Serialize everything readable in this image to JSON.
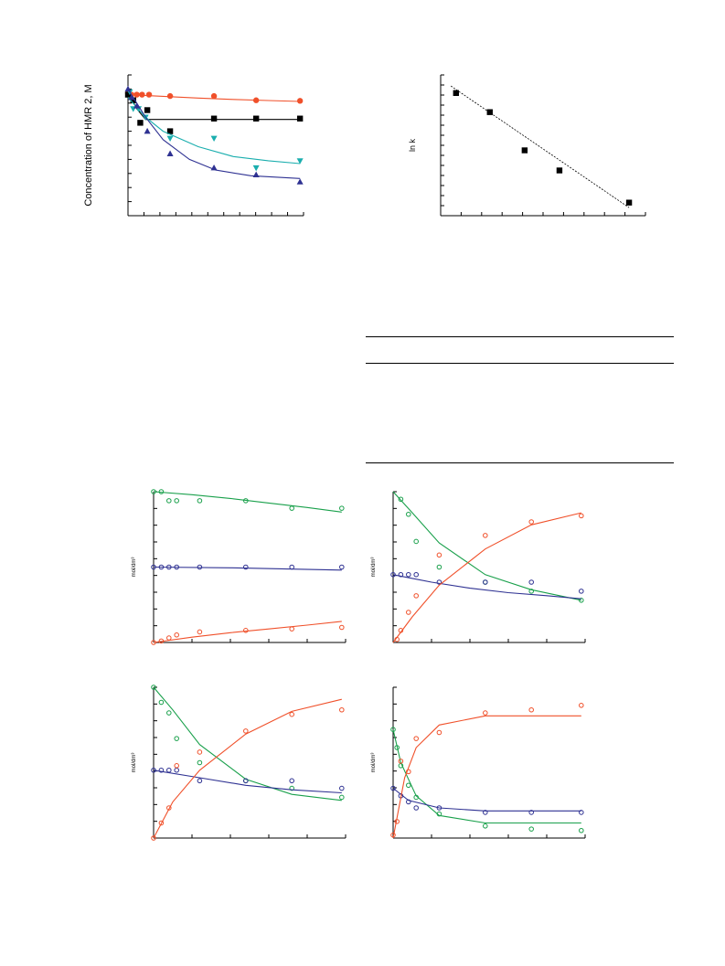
{
  "chart_data": [
    {
      "id": "hmr-concentration",
      "type": "scatter",
      "ylabel": "Concentration of HMR 2, M",
      "xlabel": "",
      "xlim": [
        0,
        100
      ],
      "ylim": [
        0,
        5
      ],
      "grid": false,
      "series": [
        {
          "color": "#f0502a",
          "marker": "circle",
          "points": [
            [
              0,
              4.35
            ],
            [
              2,
              4.3
            ],
            [
              5,
              4.3
            ],
            [
              8,
              4.3
            ],
            [
              12,
              4.3
            ],
            [
              24,
              4.25
            ],
            [
              49,
              4.25
            ],
            [
              73,
              4.1
            ],
            [
              98,
              4.08
            ]
          ],
          "fit": [
            [
              0,
              4.3
            ],
            [
              20,
              4.24
            ],
            [
              40,
              4.18
            ],
            [
              60,
              4.13
            ],
            [
              80,
              4.09
            ],
            [
              98,
              4.06
            ]
          ]
        },
        {
          "color": "#000000",
          "marker": "square",
          "points": [
            [
              0,
              4.3
            ],
            [
              3,
              4.1
            ],
            [
              7,
              3.3
            ],
            [
              11,
              3.75
            ],
            [
              24,
              3.0
            ],
            [
              49,
              3.45
            ],
            [
              73,
              3.45
            ],
            [
              98,
              3.45
            ]
          ],
          "fit": [
            [
              0,
              4.4
            ],
            [
              5,
              3.8
            ],
            [
              10,
              3.42
            ],
            [
              20,
              3.42
            ],
            [
              40,
              3.42
            ],
            [
              98,
              3.42
            ]
          ]
        },
        {
          "color": "#1aaeae",
          "marker": "triangle-down",
          "points": [
            [
              1,
              4.4
            ],
            [
              3,
              3.8
            ],
            [
              6,
              3.8
            ],
            [
              10,
              3.5
            ],
            [
              24,
              2.75
            ],
            [
              49,
              2.75
            ],
            [
              73,
              1.7
            ],
            [
              98,
              1.95
            ]
          ],
          "fit": [
            [
              0,
              4.2
            ],
            [
              10,
              3.5
            ],
            [
              20,
              3.0
            ],
            [
              40,
              2.45
            ],
            [
              60,
              2.1
            ],
            [
              80,
              1.95
            ],
            [
              98,
              1.85
            ]
          ]
        },
        {
          "color": "#2e3192",
          "marker": "triangle-up",
          "points": [
            [
              0,
              4.5
            ],
            [
              2,
              4.2
            ],
            [
              5,
              3.9
            ],
            [
              11,
              3.0
            ],
            [
              24,
              2.2
            ],
            [
              49,
              1.7
            ],
            [
              73,
              1.45
            ],
            [
              98,
              1.2
            ]
          ],
          "fit": [
            [
              0,
              4.5
            ],
            [
              10,
              3.5
            ],
            [
              20,
              2.7
            ],
            [
              35,
              2.0
            ],
            [
              50,
              1.62
            ],
            [
              70,
              1.42
            ],
            [
              98,
              1.32
            ]
          ]
        }
      ]
    },
    {
      "id": "ln-k",
      "type": "scatter",
      "ylabel": "ln k",
      "xlabel": "",
      "xlim": [
        0,
        10
      ],
      "ylim": [
        0,
        7
      ],
      "grid": false,
      "series": [
        {
          "color": "#000000",
          "marker": "square",
          "points": [
            [
              0.75,
              6.1
            ],
            [
              2.4,
              5.15
            ],
            [
              4.1,
              3.25
            ],
            [
              5.8,
              2.25
            ],
            [
              9.2,
              0.65
            ]
          ],
          "fit": [
            [
              0.5,
              6.45
            ],
            [
              9.2,
              0.4
            ]
          ]
        }
      ]
    },
    {
      "id": "conc-a",
      "type": "scatter",
      "ylabel": "mol/dm³",
      "xlabel": "",
      "xlim": [
        0,
        5
      ],
      "ylim": [
        0,
        1
      ],
      "grid": false,
      "series": [
        {
          "color": "#19a04b",
          "marker": "open-circle",
          "points": [
            [
              0,
              1
            ],
            [
              0.2,
              1
            ],
            [
              0.4,
              0.94
            ],
            [
              0.6,
              0.94
            ],
            [
              1.2,
              0.94
            ],
            [
              2.4,
              0.94
            ],
            [
              3.6,
              0.89
            ],
            [
              4.9,
              0.89
            ]
          ],
          "fit": [
            [
              0,
              1
            ],
            [
              1,
              0.98
            ],
            [
              2,
              0.955
            ],
            [
              3,
              0.925
            ],
            [
              4,
              0.895
            ],
            [
              4.9,
              0.865
            ]
          ]
        },
        {
          "color": "#2e3192",
          "marker": "open-circle",
          "points": [
            [
              0,
              0.5
            ],
            [
              0.2,
              0.5
            ],
            [
              0.4,
              0.5
            ],
            [
              0.6,
              0.5
            ],
            [
              1.2,
              0.5
            ],
            [
              2.4,
              0.5
            ],
            [
              3.6,
              0.5
            ],
            [
              4.9,
              0.5
            ]
          ],
          "fit": [
            [
              0,
              0.5
            ],
            [
              2,
              0.495
            ],
            [
              4.9,
              0.48
            ]
          ]
        },
        {
          "color": "#f0502a",
          "marker": "open-circle",
          "points": [
            [
              0,
              0
            ],
            [
              0.2,
              0.01
            ],
            [
              0.4,
              0.03
            ],
            [
              0.6,
              0.05
            ],
            [
              1.2,
              0.07
            ],
            [
              2.4,
              0.08
            ],
            [
              3.6,
              0.09
            ],
            [
              4.9,
              0.1
            ]
          ],
          "fit": [
            [
              0,
              0
            ],
            [
              1,
              0.035
            ],
            [
              2,
              0.065
            ],
            [
              3,
              0.09
            ],
            [
              4,
              0.115
            ],
            [
              4.9,
              0.14
            ]
          ]
        }
      ]
    },
    {
      "id": "conc-b",
      "type": "scatter",
      "ylabel": "mol/dm³",
      "xlabel": "",
      "xlim": [
        0,
        5
      ],
      "ylim": [
        0,
        1
      ],
      "grid": false,
      "series": [
        {
          "color": "#19a04b",
          "marker": "open-circle",
          "points": [
            [
              0.2,
              0.95
            ],
            [
              0.4,
              0.85
            ],
            [
              0.6,
              0.67
            ],
            [
              1.2,
              0.5
            ],
            [
              2.4,
              0.4
            ],
            [
              3.6,
              0.34
            ],
            [
              4.9,
              0.28
            ]
          ],
          "fit": [
            [
              0,
              1
            ],
            [
              0.5,
              0.86
            ],
            [
              1.2,
              0.66
            ],
            [
              2.4,
              0.45
            ],
            [
              3.6,
              0.35
            ],
            [
              4.9,
              0.28
            ]
          ]
        },
        {
          "color": "#2e3192",
          "marker": "open-circle",
          "points": [
            [
              0,
              0.45
            ],
            [
              0.2,
              0.45
            ],
            [
              0.4,
              0.45
            ],
            [
              0.6,
              0.45
            ],
            [
              1.2,
              0.4
            ],
            [
              2.4,
              0.4
            ],
            [
              3.6,
              0.4
            ],
            [
              4.9,
              0.34
            ]
          ],
          "fit": [
            [
              0,
              0.45
            ],
            [
              1,
              0.4
            ],
            [
              2,
              0.36
            ],
            [
              3,
              0.33
            ],
            [
              4,
              0.31
            ],
            [
              4.9,
              0.29
            ]
          ]
        },
        {
          "color": "#f0502a",
          "marker": "open-circle",
          "points": [
            [
              0.1,
              0.02
            ],
            [
              0.2,
              0.08
            ],
            [
              0.4,
              0.2
            ],
            [
              0.6,
              0.31
            ],
            [
              1.2,
              0.58
            ],
            [
              2.4,
              0.71
            ],
            [
              3.6,
              0.8
            ],
            [
              4.9,
              0.84
            ]
          ],
          "fit": [
            [
              0,
              0
            ],
            [
              0.5,
              0.17
            ],
            [
              1.2,
              0.38
            ],
            [
              2.4,
              0.62
            ],
            [
              3.6,
              0.78
            ],
            [
              4.9,
              0.86
            ]
          ]
        }
      ]
    },
    {
      "id": "conc-c",
      "type": "scatter",
      "ylabel": "mol/dm³",
      "xlabel": "",
      "xlim": [
        0,
        5
      ],
      "ylim": [
        0,
        1
      ],
      "grid": false,
      "series": [
        {
          "color": "#19a04b",
          "marker": "open-circle",
          "points": [
            [
              0,
              1
            ],
            [
              0.2,
              0.9
            ],
            [
              0.4,
              0.83
            ],
            [
              0.6,
              0.66
            ],
            [
              1.2,
              0.5
            ],
            [
              2.4,
              0.38
            ],
            [
              3.6,
              0.33
            ],
            [
              4.9,
              0.27
            ]
          ],
          "fit": [
            [
              0,
              1
            ],
            [
              0.5,
              0.85
            ],
            [
              1.2,
              0.62
            ],
            [
              2.4,
              0.39
            ],
            [
              3.6,
              0.29
            ],
            [
              4.9,
              0.25
            ]
          ]
        },
        {
          "color": "#2e3192",
          "marker": "open-circle",
          "points": [
            [
              0,
              0.45
            ],
            [
              0.2,
              0.45
            ],
            [
              0.4,
              0.45
            ],
            [
              0.6,
              0.45
            ],
            [
              1.2,
              0.38
            ],
            [
              2.4,
              0.38
            ],
            [
              3.6,
              0.38
            ],
            [
              4.9,
              0.33
            ]
          ],
          "fit": [
            [
              0,
              0.45
            ],
            [
              1.2,
              0.4
            ],
            [
              2.4,
              0.35
            ],
            [
              3.6,
              0.32
            ],
            [
              4.9,
              0.3
            ]
          ]
        },
        {
          "color": "#f0502a",
          "marker": "open-circle",
          "points": [
            [
              0,
              0
            ],
            [
              0.2,
              0.1
            ],
            [
              0.4,
              0.2
            ],
            [
              0.6,
              0.48
            ],
            [
              1.2,
              0.57
            ],
            [
              2.4,
              0.71
            ],
            [
              3.6,
              0.82
            ],
            [
              4.9,
              0.85
            ]
          ],
          "fit": [
            [
              0,
              0
            ],
            [
              0.5,
              0.24
            ],
            [
              1.2,
              0.45
            ],
            [
              2.4,
              0.69
            ],
            [
              3.6,
              0.84
            ],
            [
              4.9,
              0.92
            ]
          ]
        }
      ]
    },
    {
      "id": "conc-d",
      "type": "scatter",
      "ylabel": "mol/dm³",
      "xlabel": "",
      "xlim": [
        0,
        5
      ],
      "ylim": [
        0,
        1
      ],
      "grid": false,
      "series": [
        {
          "color": "#19a04b",
          "marker": "open-circle",
          "points": [
            [
              0,
              0.72
            ],
            [
              0.1,
              0.6
            ],
            [
              0.2,
              0.48
            ],
            [
              0.4,
              0.35
            ],
            [
              0.6,
              0.27
            ],
            [
              1.2,
              0.16
            ],
            [
              2.4,
              0.08
            ],
            [
              3.6,
              0.06
            ],
            [
              4.9,
              0.05
            ]
          ],
          "fit": [
            [
              0,
              0.72
            ],
            [
              0.2,
              0.5
            ],
            [
              0.6,
              0.28
            ],
            [
              1.2,
              0.15
            ],
            [
              2.4,
              0.1
            ],
            [
              4.9,
              0.1
            ]
          ]
        },
        {
          "color": "#2e3192",
          "marker": "open-circle",
          "points": [
            [
              0,
              0.33
            ],
            [
              0.2,
              0.28
            ],
            [
              0.4,
              0.24
            ],
            [
              0.6,
              0.2
            ],
            [
              1.2,
              0.2
            ],
            [
              2.4,
              0.17
            ],
            [
              3.6,
              0.17
            ],
            [
              4.9,
              0.17
            ]
          ],
          "fit": [
            [
              0,
              0.33
            ],
            [
              0.4,
              0.25
            ],
            [
              1.2,
              0.2
            ],
            [
              2.4,
              0.18
            ],
            [
              4.9,
              0.18
            ]
          ]
        },
        {
          "color": "#f0502a",
          "marker": "open-circle",
          "points": [
            [
              0,
              0.02
            ],
            [
              0.1,
              0.11
            ],
            [
              0.2,
              0.51
            ],
            [
              0.4,
              0.44
            ],
            [
              0.6,
              0.66
            ],
            [
              1.2,
              0.7
            ],
            [
              2.4,
              0.83
            ],
            [
              3.6,
              0.85
            ],
            [
              4.9,
              0.88
            ]
          ],
          "fit": [
            [
              0,
              0
            ],
            [
              0.3,
              0.4
            ],
            [
              0.6,
              0.6
            ],
            [
              1.2,
              0.75
            ],
            [
              2.4,
              0.81
            ],
            [
              4.9,
              0.81
            ]
          ]
        }
      ]
    }
  ]
}
